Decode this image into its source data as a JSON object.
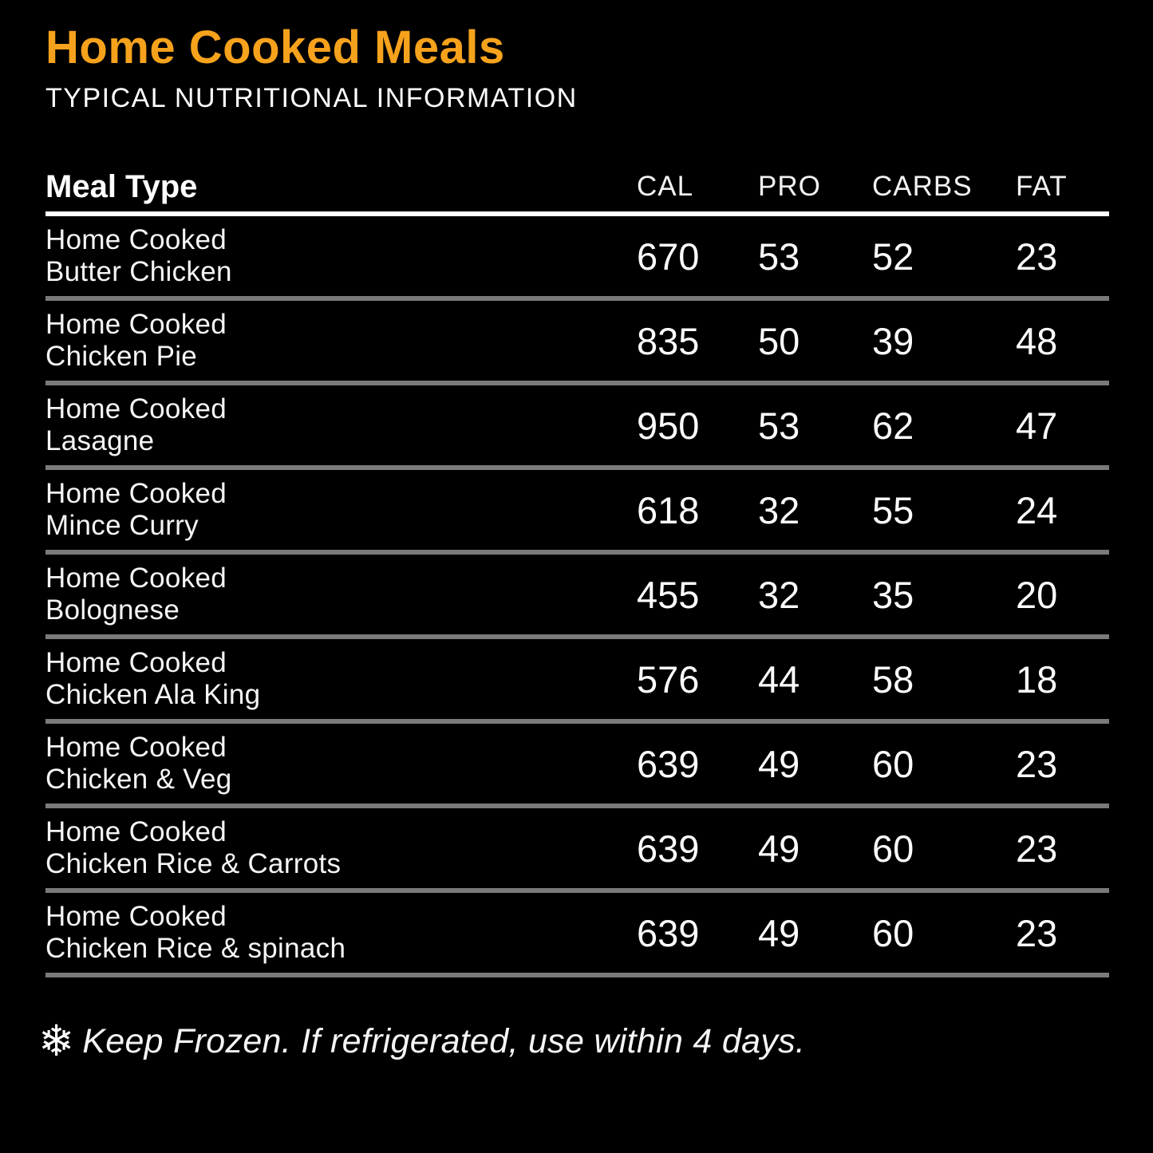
{
  "title": "Home Cooked Meals",
  "subtitle": "TYPICAL NUTRITIONAL INFORMATION",
  "colors": {
    "background": "#000000",
    "accent_orange": "#F6A21C",
    "text": "#FFFFFF",
    "header_divider": "#FFFFFF",
    "row_divider": "#7A7A7A"
  },
  "table": {
    "columns": [
      "Meal Type",
      "CAL",
      "PRO",
      "CARBS",
      "FAT"
    ],
    "rows": [
      {
        "name_line1": "Home Cooked",
        "name_line2": "Butter Chicken",
        "cal": "670",
        "pro": "53",
        "carbs": "52",
        "fat": "23"
      },
      {
        "name_line1": "Home Cooked",
        "name_line2": "Chicken Pie",
        "cal": "835",
        "pro": "50",
        "carbs": "39",
        "fat": "48"
      },
      {
        "name_line1": "Home Cooked",
        "name_line2": "Lasagne",
        "cal": "950",
        "pro": "53",
        "carbs": "62",
        "fat": "47"
      },
      {
        "name_line1": "Home Cooked",
        "name_line2": "Mince Curry",
        "cal": "618",
        "pro": "32",
        "carbs": "55",
        "fat": "24"
      },
      {
        "name_line1": "Home Cooked",
        "name_line2": "Bolognese",
        "cal": "455",
        "pro": "32",
        "carbs": "35",
        "fat": "20"
      },
      {
        "name_line1": "Home Cooked",
        "name_line2": "Chicken Ala King",
        "cal": "576",
        "pro": "44",
        "carbs": "58",
        "fat": "18"
      },
      {
        "name_line1": "Home Cooked",
        "name_line2": "Chicken & Veg",
        "cal": "639",
        "pro": "49",
        "carbs": "60",
        "fat": "23"
      },
      {
        "name_line1": "Home Cooked",
        "name_line2": "Chicken Rice & Carrots",
        "cal": "639",
        "pro": "49",
        "carbs": "60",
        "fat": "23"
      },
      {
        "name_line1": "Home Cooked",
        "name_line2": "Chicken Rice & spinach",
        "cal": "639",
        "pro": "49",
        "carbs": "60",
        "fat": "23"
      }
    ]
  },
  "footer": {
    "icon": "snowflake-icon",
    "snowflake_glyph": "❄",
    "text": "Keep Frozen. If refrigerated, use within 4 days."
  }
}
